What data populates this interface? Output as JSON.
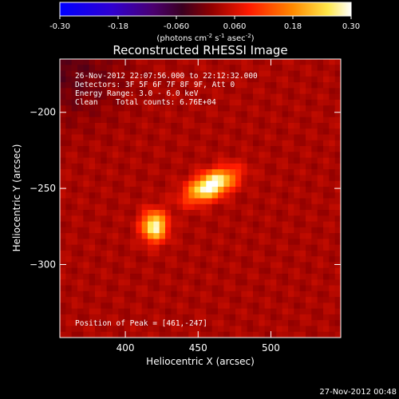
{
  "chart_data": {
    "type": "heatmap",
    "title": "Reconstructed RHESSI Image",
    "xlabel": "Heliocentric X (arcsec)",
    "ylabel": "Heliocentric Y (arcsec)",
    "xlim": [
      355,
      548
    ],
    "ylim": [
      -348,
      -165
    ],
    "x_ticks": [
      "400",
      "450",
      "500"
    ],
    "x_tick_values": [
      400,
      450,
      500
    ],
    "y_ticks": [
      "-200",
      "-250",
      "-300"
    ],
    "y_tick_values": [
      -200,
      -250,
      -300
    ],
    "colorbar": {
      "min": -0.3,
      "max": 0.3,
      "ticks": [
        "-0.30",
        "-0.18",
        "-0.060",
        "0.060",
        "0.18",
        "0.30"
      ],
      "tick_values": [
        -0.3,
        -0.18,
        -0.06,
        0.06,
        0.18,
        0.3
      ],
      "units_prefix": "(photons cm",
      "units_sup1": "-2",
      "units_mid1": " s",
      "units_sup2": "-1",
      "units_mid2": " asec",
      "units_sup3": "-2",
      "units_suffix": ")",
      "colormap": "rhessi-rainbow-hot"
    },
    "sources": [
      {
        "name": "source-1",
        "x": 459,
        "y": -248,
        "peak": 0.3
      },
      {
        "name": "source-2",
        "x": 420,
        "y": -275,
        "peak": 0.27
      }
    ]
  },
  "annotations": {
    "time_range": "26-Nov-2012 22:07:56.000 to 22:12:32.000",
    "detectors": "Detectors: 3F 5F 6F 7F 8F 9F, Att 0",
    "energy_range": "Energy Range: 3.0 - 6.0 keV",
    "clean": "Clean",
    "total_counts": "Total counts: 6.76E+04",
    "peak_position": "Position of Peak = [461,-247]"
  },
  "footer": {
    "timestamp": "27-Nov-2012 00:48"
  },
  "colors": {
    "background": "#000000",
    "text": "#ffffff",
    "colorbar_low": "#0000ff",
    "colorbar_high": "#ffffff"
  }
}
